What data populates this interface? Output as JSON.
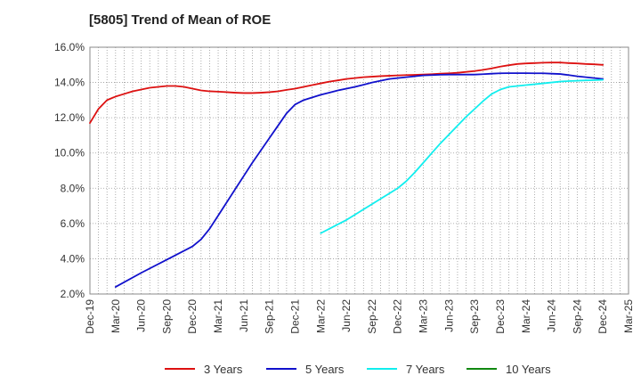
{
  "chart_data": {
    "type": "line",
    "title": "[5805]  Trend of Mean of ROE",
    "xlabel": "",
    "ylabel": "",
    "x_ticks": [
      "Dec-19",
      "Mar-20",
      "Jun-20",
      "Sep-20",
      "Dec-20",
      "Mar-21",
      "Jun-21",
      "Sep-21",
      "Dec-21",
      "Mar-22",
      "Jun-22",
      "Sep-22",
      "Dec-22",
      "Mar-23",
      "Jun-23",
      "Sep-23",
      "Dec-23",
      "Mar-24",
      "Jun-24",
      "Sep-24",
      "Dec-24",
      "Mar-25"
    ],
    "y_ticks": [
      "2.0%",
      "4.0%",
      "6.0%",
      "8.0%",
      "10.0%",
      "12.0%",
      "14.0%",
      "16.0%"
    ],
    "ylim": [
      2.0,
      16.0
    ],
    "grid": true,
    "legend_position": "bottom",
    "series": [
      {
        "name": "3 Years",
        "color": "#dd1111",
        "x": [
          "Dec-19",
          "Jan-20",
          "Feb-20",
          "Mar-20",
          "Apr-20",
          "May-20",
          "Jun-20",
          "Jul-20",
          "Aug-20",
          "Sep-20",
          "Oct-20",
          "Nov-20",
          "Dec-20",
          "Jan-21",
          "Feb-21",
          "Mar-21",
          "Apr-21",
          "May-21",
          "Jun-21",
          "Jul-21",
          "Aug-21",
          "Sep-21",
          "Oct-21",
          "Nov-21",
          "Dec-21",
          "Jan-22",
          "Feb-22",
          "Mar-22",
          "Apr-22",
          "May-22",
          "Jun-22",
          "Jul-22",
          "Aug-22",
          "Sep-22",
          "Oct-22",
          "Nov-22",
          "Dec-22",
          "Jan-23",
          "Feb-23",
          "Mar-23",
          "Apr-23",
          "May-23",
          "Jun-23",
          "Jul-23",
          "Aug-23",
          "Sep-23",
          "Oct-23",
          "Nov-23",
          "Dec-23",
          "Jan-24",
          "Feb-24",
          "Mar-24",
          "Apr-24",
          "May-24",
          "Jun-24",
          "Jul-24",
          "Aug-24",
          "Sep-24",
          "Oct-24",
          "Nov-24",
          "Dec-24"
        ],
        "values": [
          11.7,
          12.5,
          13.0,
          13.2,
          13.35,
          13.5,
          13.6,
          13.7,
          13.75,
          13.8,
          13.8,
          13.75,
          13.65,
          13.55,
          13.5,
          13.48,
          13.45,
          13.42,
          13.4,
          13.4,
          13.42,
          13.45,
          13.5,
          13.58,
          13.65,
          13.75,
          13.85,
          13.95,
          14.05,
          14.12,
          14.2,
          14.25,
          14.3,
          14.33,
          14.36,
          14.38,
          14.4,
          14.42,
          14.43,
          14.45,
          14.47,
          14.5,
          14.52,
          14.55,
          14.6,
          14.65,
          14.72,
          14.8,
          14.9,
          14.98,
          15.05,
          15.08,
          15.1,
          15.12,
          15.13,
          15.13,
          15.1,
          15.08,
          15.05,
          15.03,
          15.0
        ]
      },
      {
        "name": "5 Years",
        "color": "#1111cc",
        "x": [
          "Mar-20",
          "Jun-20",
          "Sep-20",
          "Dec-20",
          "Jan-21",
          "Feb-21",
          "Mar-21",
          "Apr-21",
          "May-21",
          "Jun-21",
          "Jul-21",
          "Aug-21",
          "Sep-21",
          "Oct-21",
          "Nov-21",
          "Dec-21",
          "Jan-22",
          "Feb-22",
          "Mar-22",
          "Apr-22",
          "May-22",
          "Jun-22",
          "Jul-22",
          "Aug-22",
          "Sep-22",
          "Oct-22",
          "Nov-22",
          "Dec-22",
          "Jan-23",
          "Feb-23",
          "Mar-23",
          "Apr-23",
          "May-23",
          "Jun-23",
          "Jul-23",
          "Aug-23",
          "Sep-23",
          "Oct-23",
          "Nov-23",
          "Dec-23",
          "Jan-24",
          "Feb-24",
          "Mar-24",
          "Apr-24",
          "May-24",
          "Jun-24",
          "Jul-24",
          "Aug-24",
          "Sep-24",
          "Oct-24",
          "Nov-24",
          "Dec-24"
        ],
        "values": [
          2.4,
          3.2,
          3.95,
          4.7,
          5.1,
          5.7,
          6.45,
          7.2,
          7.95,
          8.7,
          9.45,
          10.15,
          10.85,
          11.55,
          12.25,
          12.75,
          13.0,
          13.15,
          13.3,
          13.42,
          13.55,
          13.65,
          13.75,
          13.87,
          14.0,
          14.1,
          14.2,
          14.25,
          14.3,
          14.35,
          14.4,
          14.42,
          14.44,
          14.45,
          14.45,
          14.45,
          14.45,
          14.47,
          14.5,
          14.52,
          14.53,
          14.53,
          14.53,
          14.52,
          14.52,
          14.5,
          14.48,
          14.42,
          14.35,
          14.3,
          14.25,
          14.2
        ]
      },
      {
        "name": "7 Years",
        "color": "#11eeee",
        "x": [
          "Mar-22",
          "Apr-22",
          "May-22",
          "Jun-22",
          "Jul-22",
          "Aug-22",
          "Sep-22",
          "Oct-22",
          "Nov-22",
          "Dec-22",
          "Jan-23",
          "Feb-23",
          "Mar-23",
          "Apr-23",
          "May-23",
          "Jun-23",
          "Jul-23",
          "Aug-23",
          "Sep-23",
          "Oct-23",
          "Nov-23",
          "Dec-23",
          "Jan-24",
          "Feb-24",
          "Mar-24",
          "Apr-24",
          "May-24",
          "Jun-24",
          "Jul-24",
          "Aug-24",
          "Sep-24",
          "Oct-24",
          "Nov-24",
          "Dec-24"
        ],
        "values": [
          5.45,
          5.7,
          5.95,
          6.2,
          6.5,
          6.8,
          7.1,
          7.4,
          7.7,
          8.0,
          8.4,
          8.9,
          9.45,
          10.0,
          10.55,
          11.05,
          11.55,
          12.05,
          12.5,
          12.95,
          13.35,
          13.6,
          13.75,
          13.8,
          13.85,
          13.9,
          13.95,
          14.0,
          14.05,
          14.08,
          14.1,
          14.12,
          14.13,
          14.15
        ]
      },
      {
        "name": "10 Years",
        "color": "#118811",
        "x": [],
        "values": []
      }
    ]
  }
}
